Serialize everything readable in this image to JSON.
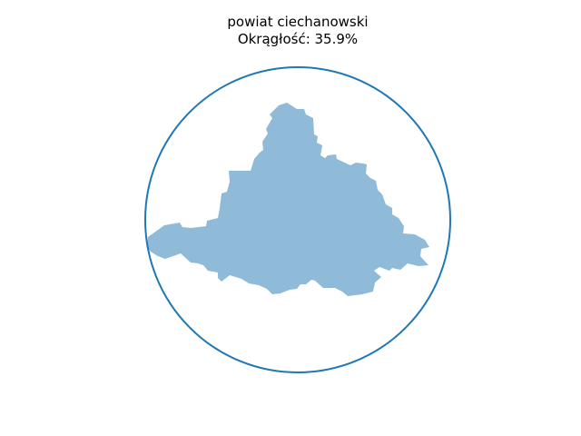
{
  "figure": {
    "title_line1": "powiat ciechanowski",
    "title_line2": "Okrągłość: 35.9%"
  },
  "colors": {
    "circle_stroke": "#1f77b4",
    "shape_fill": "#1f77b4",
    "shape_fill_opacity": "0.5",
    "background": "#ffffff"
  },
  "metrics": {
    "roundness_percent": 35.9
  }
}
